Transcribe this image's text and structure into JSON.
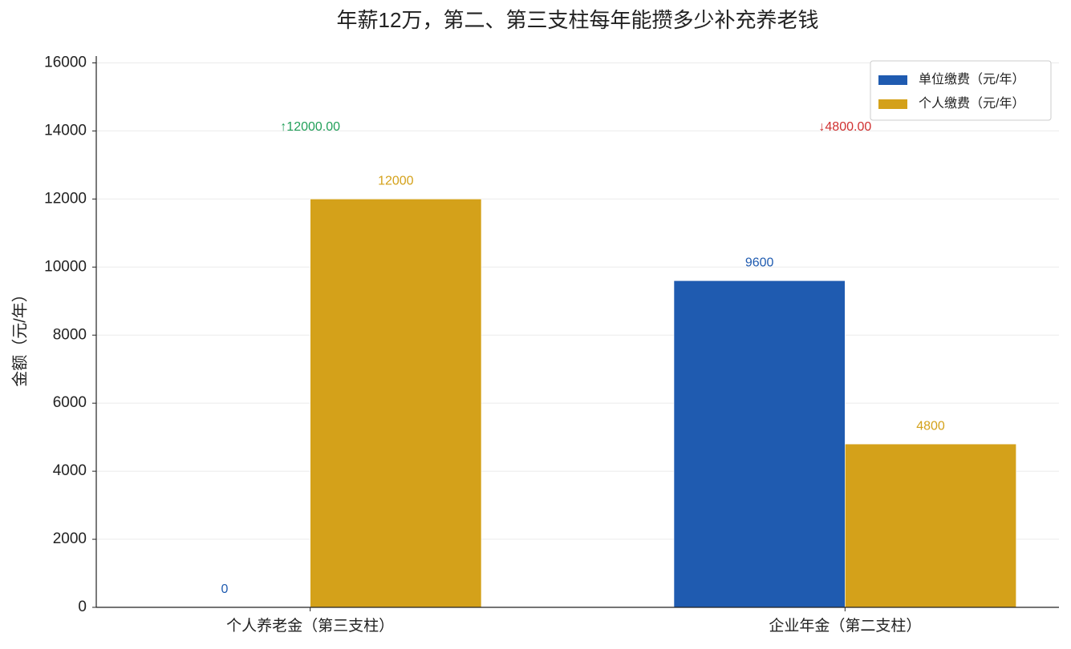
{
  "chart_data": {
    "type": "bar",
    "title": "年薪12万，第二、第三支柱每年能攒多少补充养老钱",
    "y_label": "金额（元/年）",
    "categories": [
      "个人养老金（第三支柱）",
      "企业年金（第二支柱）"
    ],
    "series": [
      {
        "name": "单位缴费（元/年）",
        "color": "#1f5bb0",
        "values": [
          0,
          9600
        ]
      },
      {
        "name": "个人缴费（元/年）",
        "color": "#d4a11a",
        "values": [
          12000,
          4800
        ]
      }
    ],
    "annotations": [
      {
        "text": "↑12000.00",
        "color": "#22a05a"
      },
      {
        "text": "↓4800.00",
        "color": "#d03030"
      }
    ],
    "ylim": [
      0,
      16200
    ],
    "yticks": [
      0,
      2000,
      4000,
      6000,
      8000,
      10000,
      12000,
      14000,
      16000
    ],
    "grid": true,
    "legend": "upper-right"
  }
}
